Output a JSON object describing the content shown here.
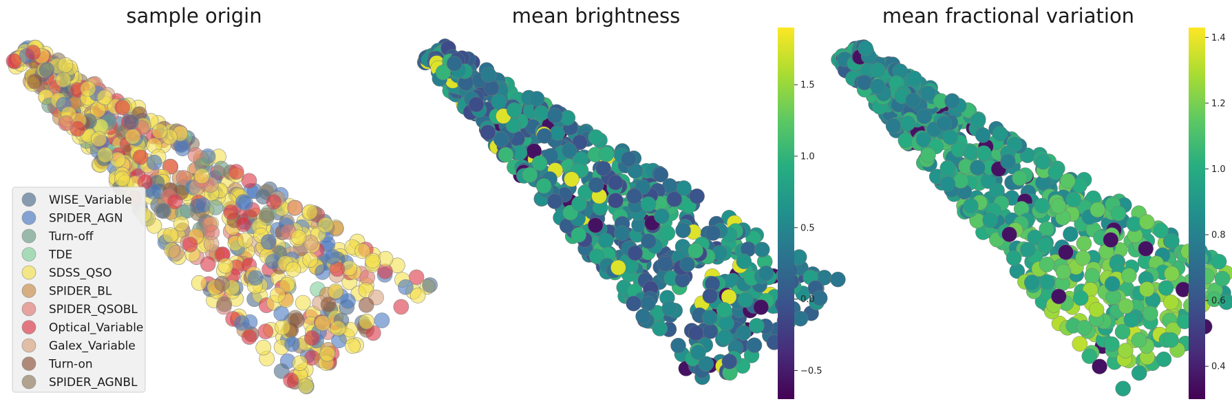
{
  "chart_data": [
    {
      "type": "scatter",
      "title": "sample origin",
      "xlabel": "",
      "ylabel": "",
      "grid": false,
      "axes_visible": false,
      "legend_position": "lower-left",
      "legend": [
        {
          "label": "WISE_Variable",
          "color": "#4f6d8c"
        },
        {
          "label": "SPIDER_AGN",
          "color": "#4a78c2"
        },
        {
          "label": "Turn-off",
          "color": "#6a9c86"
        },
        {
          "label": "TDE",
          "color": "#7fcf9a"
        },
        {
          "label": "SDSS_QSO",
          "color": "#f4e04d"
        },
        {
          "label": "SPIDER_BL",
          "color": "#c88b45"
        },
        {
          "label": "SPIDER_QSOBL",
          "color": "#e07a73"
        },
        {
          "label": "Optical_Variable",
          "color": "#dc3545"
        },
        {
          "label": "Galex_Variable",
          "color": "#d9a37e"
        },
        {
          "label": "Turn-on",
          "color": "#8e5338"
        },
        {
          "label": "SPIDER_AGNBL",
          "color": "#8f7a5c"
        }
      ]
    },
    {
      "type": "scatter",
      "title": "mean brightness",
      "xlabel": "",
      "ylabel": "",
      "grid": false,
      "axes_visible": false,
      "colormap": "viridis",
      "colorbar": {
        "min": -0.7,
        "max": 1.9,
        "ticks": [
          -0.5,
          0.0,
          0.5,
          1.0,
          1.5
        ],
        "tick_labels": [
          "−0.5",
          "0.0",
          "0.5",
          "1.0",
          "1.5"
        ]
      }
    },
    {
      "type": "scatter",
      "title": "mean fractional variation",
      "xlabel": "",
      "ylabel": "",
      "grid": false,
      "axes_visible": false,
      "colormap": "viridis",
      "colorbar": {
        "min": 0.3,
        "max": 1.43,
        "ticks": [
          0.4,
          0.6,
          0.8,
          1.0,
          1.2,
          1.4
        ],
        "tick_labels": [
          "0.4",
          "0.6",
          "0.8",
          "1.0",
          "1.2",
          "1.4"
        ]
      }
    }
  ]
}
